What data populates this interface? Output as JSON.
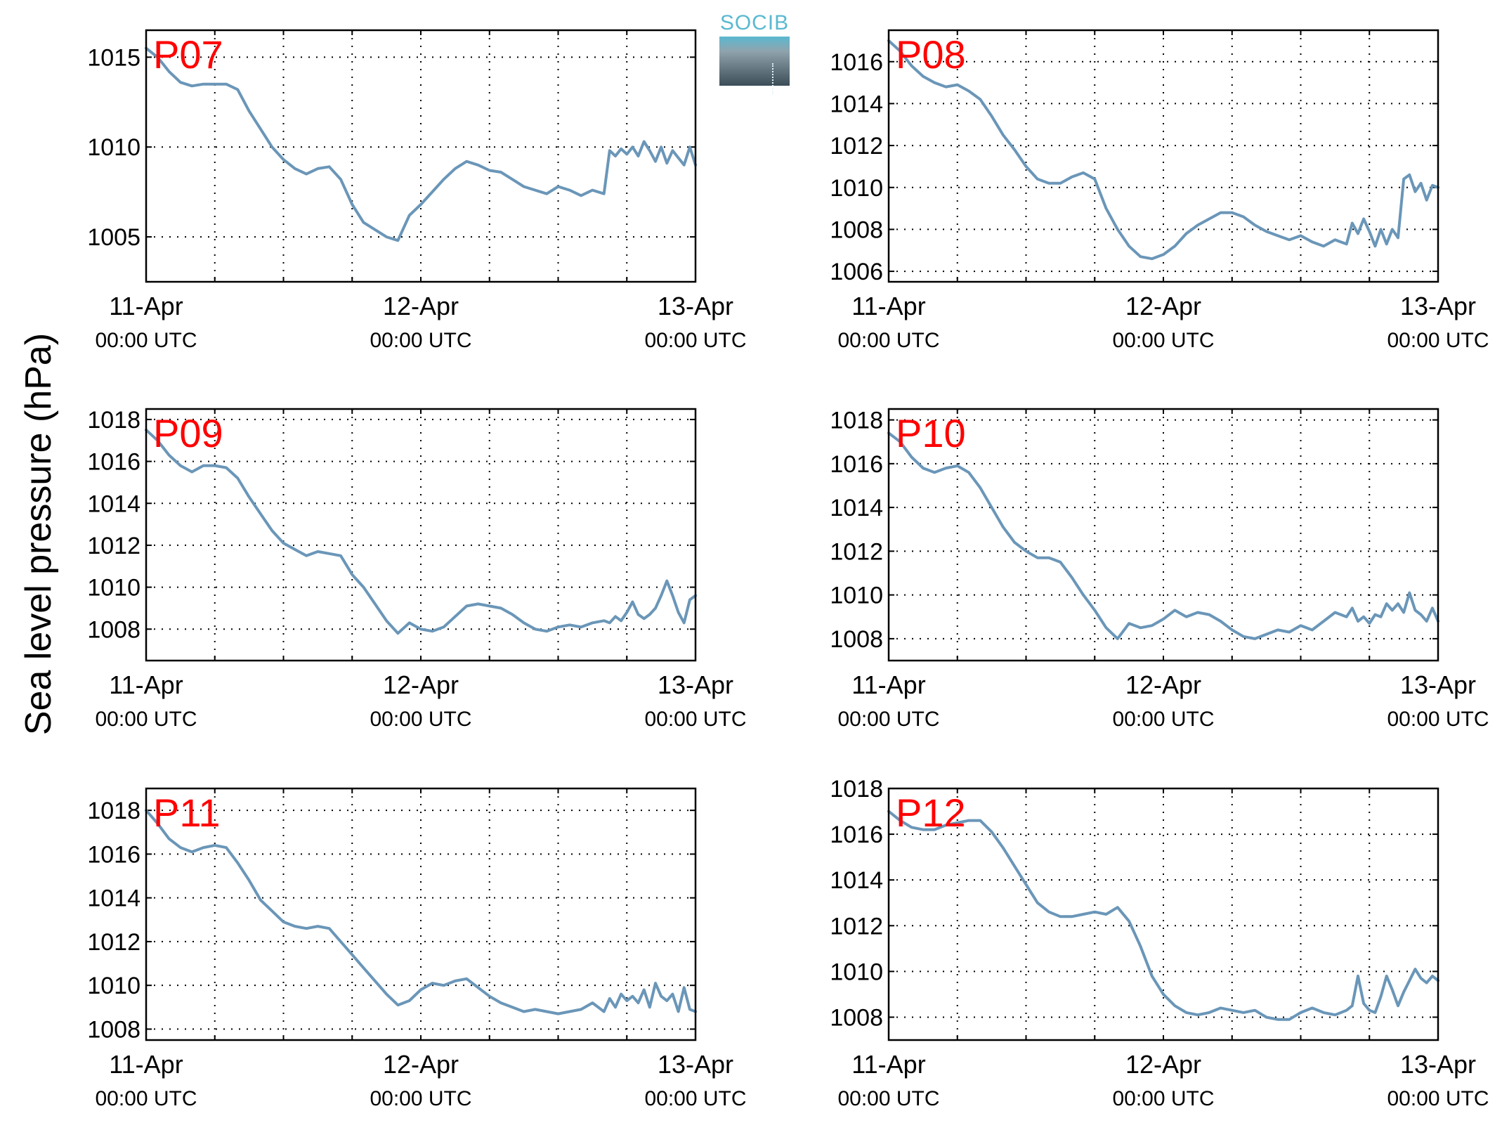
{
  "figure": {
    "ylabel": "Sea level pressure (hPa)",
    "logo_text": "SOCIB",
    "line_color": "#6a96b8",
    "station_label_color": "#ff0000"
  },
  "chart_data": [
    {
      "type": "line",
      "station": "P07",
      "xlim": [
        0,
        48
      ],
      "ylim": [
        1002.5,
        1016.5
      ],
      "yticks": [
        1005,
        1010,
        1015
      ],
      "xticks": [
        0,
        24,
        48
      ],
      "xticklabels": [
        [
          "11-Apr",
          "00:00 UTC"
        ],
        [
          "12-Apr",
          "00:00 UTC"
        ],
        [
          "13-Apr",
          "00:00 UTC"
        ]
      ],
      "grid": true,
      "x": [
        0,
        1,
        2,
        3,
        4,
        5,
        6,
        7,
        8,
        9,
        10,
        11,
        12,
        13,
        14,
        15,
        16,
        17,
        18,
        19,
        20,
        21,
        22,
        23,
        24,
        25,
        26,
        27,
        28,
        29,
        30,
        31,
        32,
        33,
        34,
        35,
        36,
        37,
        38,
        39,
        40,
        40.5,
        41,
        41.5,
        42,
        42.5,
        43,
        43.5,
        44,
        44.5,
        45,
        45.5,
        46,
        46.5,
        47,
        47.5,
        48
      ],
      "y": [
        1015.5,
        1015.0,
        1014.2,
        1013.6,
        1013.4,
        1013.5,
        1013.5,
        1013.5,
        1013.2,
        1012.0,
        1011.0,
        1010.0,
        1009.3,
        1008.8,
        1008.5,
        1008.8,
        1008.9,
        1008.2,
        1006.8,
        1005.8,
        1005.4,
        1005.0,
        1004.8,
        1006.2,
        1006.8,
        1007.5,
        1008.2,
        1008.8,
        1009.2,
        1009.0,
        1008.7,
        1008.6,
        1008.2,
        1007.8,
        1007.6,
        1007.4,
        1007.8,
        1007.6,
        1007.3,
        1007.6,
        1007.4,
        1009.8,
        1009.5,
        1009.9,
        1009.6,
        1010.0,
        1009.5,
        1010.3,
        1009.8,
        1009.2,
        1010.0,
        1009.1,
        1009.8,
        1009.4,
        1009.0,
        1010.0,
        1009.0
      ]
    },
    {
      "type": "line",
      "station": "P08",
      "xlim": [
        0,
        48
      ],
      "ylim": [
        1005.5,
        1017.5
      ],
      "yticks": [
        1006,
        1008,
        1010,
        1012,
        1014,
        1016
      ],
      "xticks": [
        0,
        24,
        48
      ],
      "xticklabels": [
        [
          "11-Apr",
          "00:00 UTC"
        ],
        [
          "12-Apr",
          "00:00 UTC"
        ],
        [
          "13-Apr",
          "00:00 UTC"
        ]
      ],
      "grid": true,
      "x": [
        0,
        1,
        2,
        3,
        4,
        5,
        6,
        7,
        8,
        9,
        10,
        11,
        12,
        13,
        14,
        15,
        16,
        17,
        18,
        19,
        20,
        21,
        22,
        23,
        24,
        25,
        26,
        27,
        28,
        29,
        30,
        31,
        32,
        33,
        34,
        35,
        36,
        37,
        38,
        39,
        40,
        40.5,
        41,
        41.5,
        42,
        42.5,
        43,
        43.5,
        44,
        44.5,
        45,
        45.5,
        46,
        46.5,
        47,
        47.5,
        48
      ],
      "y": [
        1017.0,
        1016.5,
        1015.8,
        1015.3,
        1015.0,
        1014.8,
        1014.9,
        1014.6,
        1014.2,
        1013.4,
        1012.5,
        1011.8,
        1011.0,
        1010.4,
        1010.2,
        1010.2,
        1010.5,
        1010.7,
        1010.4,
        1009.0,
        1008.0,
        1007.2,
        1006.7,
        1006.6,
        1006.8,
        1007.2,
        1007.8,
        1008.2,
        1008.5,
        1008.8,
        1008.8,
        1008.6,
        1008.2,
        1007.9,
        1007.7,
        1007.5,
        1007.7,
        1007.4,
        1007.2,
        1007.5,
        1007.3,
        1008.3,
        1007.8,
        1008.5,
        1007.9,
        1007.2,
        1008.0,
        1007.3,
        1008.0,
        1007.6,
        1010.4,
        1010.6,
        1009.8,
        1010.2,
        1009.4,
        1010.1,
        1010.0
      ]
    },
    {
      "type": "line",
      "station": "P09",
      "xlim": [
        0,
        48
      ],
      "ylim": [
        1006.5,
        1018.5
      ],
      "yticks": [
        1008,
        1010,
        1012,
        1014,
        1016,
        1018
      ],
      "xticks": [
        0,
        24,
        48
      ],
      "xticklabels": [
        [
          "11-Apr",
          "00:00 UTC"
        ],
        [
          "12-Apr",
          "00:00 UTC"
        ],
        [
          "13-Apr",
          "00:00 UTC"
        ]
      ],
      "grid": true,
      "x": [
        0,
        1,
        2,
        3,
        4,
        5,
        6,
        7,
        8,
        9,
        10,
        11,
        12,
        13,
        14,
        15,
        16,
        17,
        18,
        19,
        20,
        21,
        22,
        23,
        24,
        25,
        26,
        27,
        28,
        29,
        30,
        31,
        32,
        33,
        34,
        35,
        36,
        37,
        38,
        39,
        40,
        40.5,
        41,
        41.5,
        42,
        42.5,
        43,
        43.5,
        44,
        44.5,
        45,
        45.5,
        46,
        46.5,
        47,
        47.5,
        48
      ],
      "y": [
        1017.5,
        1017.0,
        1016.3,
        1015.8,
        1015.5,
        1015.8,
        1015.8,
        1015.7,
        1015.2,
        1014.3,
        1013.5,
        1012.7,
        1012.1,
        1011.8,
        1011.5,
        1011.7,
        1011.6,
        1011.5,
        1010.6,
        1010.0,
        1009.2,
        1008.4,
        1007.8,
        1008.3,
        1008.0,
        1007.9,
        1008.1,
        1008.6,
        1009.1,
        1009.2,
        1009.1,
        1009.0,
        1008.7,
        1008.3,
        1008.0,
        1007.9,
        1008.1,
        1008.2,
        1008.1,
        1008.3,
        1008.4,
        1008.3,
        1008.6,
        1008.4,
        1008.8,
        1009.3,
        1008.7,
        1008.5,
        1008.7,
        1009.0,
        1009.6,
        1010.3,
        1009.6,
        1008.8,
        1008.3,
        1009.4,
        1009.6
      ]
    },
    {
      "type": "line",
      "station": "P10",
      "xlim": [
        0,
        48
      ],
      "ylim": [
        1007.0,
        1018.5
      ],
      "yticks": [
        1008,
        1010,
        1012,
        1014,
        1016,
        1018
      ],
      "xticks": [
        0,
        24,
        48
      ],
      "xticklabels": [
        [
          "11-Apr",
          "00:00 UTC"
        ],
        [
          "12-Apr",
          "00:00 UTC"
        ],
        [
          "13-Apr",
          "00:00 UTC"
        ]
      ],
      "grid": true,
      "x": [
        0,
        1,
        2,
        3,
        4,
        5,
        6,
        7,
        8,
        9,
        10,
        11,
        12,
        13,
        14,
        15,
        16,
        17,
        18,
        19,
        20,
        21,
        22,
        23,
        24,
        25,
        26,
        27,
        28,
        29,
        30,
        31,
        32,
        33,
        34,
        35,
        36,
        37,
        38,
        39,
        40,
        40.5,
        41,
        41.5,
        42,
        42.5,
        43,
        43.5,
        44,
        44.5,
        45,
        45.5,
        46,
        46.5,
        47,
        47.5,
        48
      ],
      "y": [
        1017.4,
        1017.0,
        1016.3,
        1015.8,
        1015.6,
        1015.8,
        1015.9,
        1015.6,
        1014.9,
        1014.0,
        1013.1,
        1012.4,
        1012.0,
        1011.7,
        1011.7,
        1011.5,
        1010.8,
        1010.0,
        1009.3,
        1008.5,
        1008.0,
        1008.7,
        1008.5,
        1008.6,
        1008.9,
        1009.3,
        1009.0,
        1009.2,
        1009.1,
        1008.8,
        1008.4,
        1008.1,
        1008.0,
        1008.2,
        1008.4,
        1008.3,
        1008.6,
        1008.4,
        1008.8,
        1009.2,
        1009.0,
        1009.4,
        1008.8,
        1009.0,
        1008.7,
        1009.1,
        1009.0,
        1009.6,
        1009.3,
        1009.6,
        1009.2,
        1010.1,
        1009.3,
        1009.1,
        1008.8,
        1009.4,
        1008.8
      ]
    },
    {
      "type": "line",
      "station": "P11",
      "xlim": [
        0,
        48
      ],
      "ylim": [
        1007.5,
        1019.0
      ],
      "yticks": [
        1008,
        1010,
        1012,
        1014,
        1016,
        1018
      ],
      "xticks": [
        0,
        24,
        48
      ],
      "xticklabels": [
        [
          "11-Apr",
          "00:00 UTC"
        ],
        [
          "12-Apr",
          "00:00 UTC"
        ],
        [
          "13-Apr",
          "00:00 UTC"
        ]
      ],
      "grid": true,
      "x": [
        0,
        1,
        2,
        3,
        4,
        5,
        6,
        7,
        8,
        9,
        10,
        11,
        12,
        13,
        14,
        15,
        16,
        17,
        18,
        19,
        20,
        21,
        22,
        23,
        24,
        25,
        26,
        27,
        28,
        29,
        30,
        31,
        32,
        33,
        34,
        35,
        36,
        37,
        38,
        39,
        40,
        40.5,
        41,
        41.5,
        42,
        42.5,
        43,
        43.5,
        44,
        44.5,
        45,
        45.5,
        46,
        46.5,
        47,
        47.5,
        48
      ],
      "y": [
        1018.0,
        1017.4,
        1016.7,
        1016.3,
        1016.1,
        1016.3,
        1016.4,
        1016.3,
        1015.6,
        1014.8,
        1013.9,
        1013.4,
        1012.9,
        1012.7,
        1012.6,
        1012.7,
        1012.6,
        1012.0,
        1011.4,
        1010.8,
        1010.2,
        1009.6,
        1009.1,
        1009.3,
        1009.8,
        1010.1,
        1010.0,
        1010.2,
        1010.3,
        1009.9,
        1009.5,
        1009.2,
        1009.0,
        1008.8,
        1008.9,
        1008.8,
        1008.7,
        1008.8,
        1008.9,
        1009.2,
        1008.8,
        1009.4,
        1009.0,
        1009.6,
        1009.3,
        1009.5,
        1009.2,
        1009.8,
        1009.0,
        1010.1,
        1009.5,
        1009.3,
        1009.6,
        1008.8,
        1009.9,
        1008.9,
        1008.8
      ]
    },
    {
      "type": "line",
      "station": "P12",
      "xlim": [
        0,
        48
      ],
      "ylim": [
        1007.0,
        1018.0
      ],
      "yticks": [
        1008,
        1010,
        1012,
        1014,
        1016,
        1018
      ],
      "xticks": [
        0,
        24,
        48
      ],
      "xticklabels": [
        [
          "11-Apr",
          "00:00 UTC"
        ],
        [
          "12-Apr",
          "00:00 UTC"
        ],
        [
          "13-Apr",
          "00:00 UTC"
        ]
      ],
      "grid": true,
      "x": [
        0,
        1,
        2,
        3,
        4,
        5,
        6,
        7,
        8,
        9,
        10,
        11,
        12,
        13,
        14,
        15,
        16,
        17,
        18,
        19,
        20,
        21,
        22,
        23,
        24,
        25,
        26,
        27,
        28,
        29,
        30,
        31,
        32,
        33,
        34,
        35,
        36,
        37,
        38,
        39,
        40,
        40.5,
        41,
        41.5,
        42,
        42.5,
        43,
        43.5,
        44,
        44.5,
        45,
        45.5,
        46,
        46.5,
        47,
        47.5,
        48
      ],
      "y": [
        1017.0,
        1016.6,
        1016.3,
        1016.2,
        1016.2,
        1016.4,
        1016.5,
        1016.6,
        1016.6,
        1016.1,
        1015.4,
        1014.6,
        1013.8,
        1013.0,
        1012.6,
        1012.4,
        1012.4,
        1012.5,
        1012.6,
        1012.5,
        1012.8,
        1012.2,
        1011.1,
        1009.8,
        1009.0,
        1008.5,
        1008.2,
        1008.1,
        1008.2,
        1008.4,
        1008.3,
        1008.2,
        1008.3,
        1008.0,
        1007.9,
        1007.9,
        1008.2,
        1008.4,
        1008.2,
        1008.1,
        1008.3,
        1008.5,
        1009.8,
        1008.6,
        1008.3,
        1008.2,
        1008.9,
        1009.8,
        1009.2,
        1008.5,
        1009.1,
        1009.6,
        1010.1,
        1009.7,
        1009.5,
        1009.8,
        1009.6
      ]
    }
  ]
}
